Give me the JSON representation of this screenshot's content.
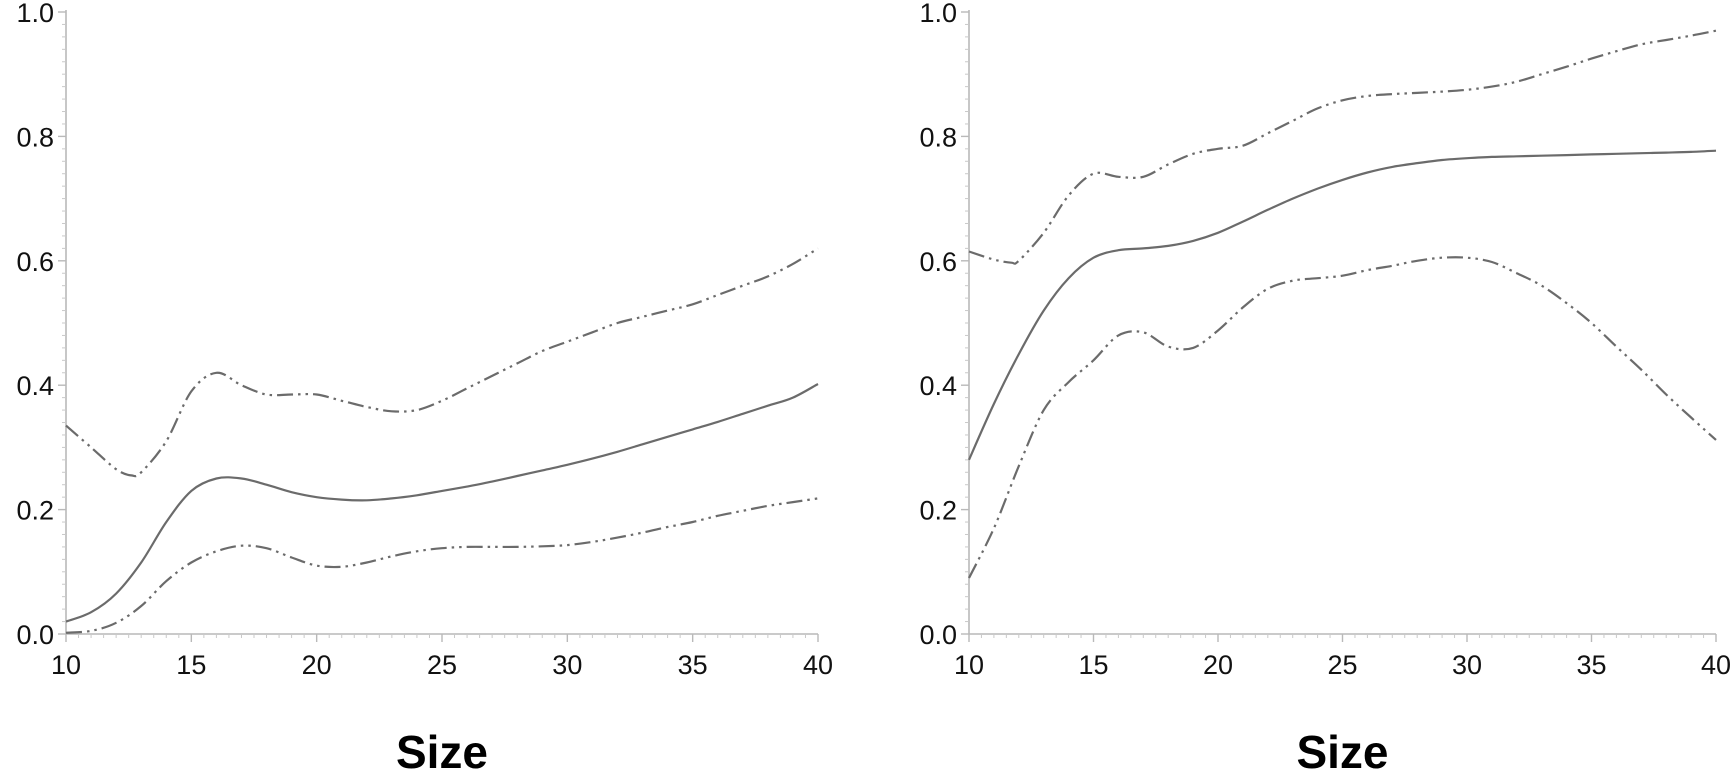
{
  "chart_data": [
    {
      "type": "line",
      "xlabel": "Size",
      "ylabel": "",
      "xlim": [
        10,
        40
      ],
      "ylim": [
        0,
        1
      ],
      "x_ticks": [
        "10",
        "15",
        "20",
        "25",
        "30",
        "35",
        "40"
      ],
      "y_ticks": [
        "0.0",
        "0.2",
        "0.4",
        "0.6",
        "0.8",
        "1.0"
      ],
      "grid": false,
      "series": [
        {
          "style": "solid",
          "x": [
            10,
            11,
            12,
            13,
            14,
            15,
            16,
            17,
            18,
            19,
            20,
            21,
            22,
            23,
            24,
            25,
            26,
            27,
            28,
            29,
            30,
            31,
            32,
            33,
            34,
            35,
            36,
            37,
            38,
            39,
            40
          ],
          "values": [
            0.02,
            0.035,
            0.065,
            0.115,
            0.18,
            0.23,
            0.25,
            0.25,
            0.24,
            0.228,
            0.22,
            0.216,
            0.215,
            0.218,
            0.223,
            0.23,
            0.237,
            0.245,
            0.254,
            0.263,
            0.272,
            0.282,
            0.293,
            0.305,
            0.317,
            0.329,
            0.341,
            0.354,
            0.367,
            0.38,
            0.402
          ]
        },
        {
          "style": "dash-dot-dot",
          "x": [
            10,
            11,
            12,
            12.6,
            13,
            14,
            15,
            16,
            17,
            18,
            19,
            20,
            21,
            22,
            23,
            24,
            25,
            26,
            27,
            28,
            29,
            30,
            31,
            32,
            33,
            34,
            35,
            36,
            37,
            38,
            39,
            40
          ],
          "values": [
            0.335,
            0.3,
            0.265,
            0.255,
            0.26,
            0.31,
            0.39,
            0.42,
            0.4,
            0.385,
            0.385,
            0.385,
            0.375,
            0.365,
            0.358,
            0.36,
            0.375,
            0.395,
            0.415,
            0.435,
            0.455,
            0.47,
            0.485,
            0.5,
            0.51,
            0.52,
            0.53,
            0.545,
            0.56,
            0.575,
            0.595,
            0.62
          ]
        },
        {
          "style": "dash-dot-dot",
          "x": [
            10,
            11,
            12,
            13,
            14,
            15,
            16,
            17,
            18,
            19,
            20,
            21,
            22,
            23,
            24,
            25,
            26,
            27,
            28,
            29,
            30,
            31,
            32,
            33,
            34,
            35,
            36,
            37,
            38,
            39,
            40
          ],
          "values": [
            0.002,
            0.005,
            0.018,
            0.045,
            0.085,
            0.115,
            0.133,
            0.142,
            0.138,
            0.123,
            0.11,
            0.108,
            0.115,
            0.125,
            0.133,
            0.138,
            0.14,
            0.14,
            0.14,
            0.141,
            0.143,
            0.148,
            0.155,
            0.163,
            0.172,
            0.18,
            0.19,
            0.198,
            0.206,
            0.212,
            0.218
          ]
        }
      ]
    },
    {
      "type": "line",
      "xlabel": "Size",
      "ylabel": "",
      "xlim": [
        10,
        40
      ],
      "ylim": [
        0,
        1
      ],
      "x_ticks": [
        "10",
        "15",
        "20",
        "25",
        "30",
        "35",
        "40"
      ],
      "y_ticks": [
        "0.0",
        "0.2",
        "0.4",
        "0.6",
        "0.8",
        "1.0"
      ],
      "grid": false,
      "series": [
        {
          "style": "solid",
          "x": [
            10,
            11,
            12,
            13,
            14,
            15,
            16,
            17,
            18,
            19,
            20,
            21,
            22,
            23,
            24,
            25,
            26,
            27,
            28,
            29,
            30,
            31,
            32,
            33,
            34,
            35,
            36,
            37,
            38,
            39,
            40
          ],
          "values": [
            0.28,
            0.37,
            0.45,
            0.52,
            0.572,
            0.605,
            0.617,
            0.62,
            0.624,
            0.632,
            0.645,
            0.663,
            0.682,
            0.7,
            0.716,
            0.73,
            0.742,
            0.751,
            0.757,
            0.762,
            0.765,
            0.767,
            0.768,
            0.769,
            0.77,
            0.771,
            0.772,
            0.773,
            0.774,
            0.775,
            0.777
          ]
        },
        {
          "style": "dash-dot-dot",
          "x": [
            10,
            11,
            11.7,
            12,
            13,
            14,
            15,
            16,
            17,
            18,
            19,
            20,
            21,
            22,
            23,
            24,
            25,
            26,
            27,
            28,
            29,
            30,
            31,
            32,
            33,
            34,
            35,
            36,
            37,
            38,
            39,
            40
          ],
          "values": [
            0.615,
            0.602,
            0.597,
            0.6,
            0.645,
            0.705,
            0.74,
            0.735,
            0.735,
            0.755,
            0.772,
            0.78,
            0.785,
            0.805,
            0.825,
            0.845,
            0.858,
            0.865,
            0.868,
            0.87,
            0.872,
            0.875,
            0.88,
            0.888,
            0.9,
            0.912,
            0.925,
            0.937,
            0.948,
            0.955,
            0.962,
            0.97
          ]
        },
        {
          "style": "dash-dot-dot",
          "x": [
            10,
            11,
            12,
            13,
            14,
            15,
            16,
            17,
            18,
            19,
            20,
            21,
            22,
            23,
            24,
            25,
            26,
            27,
            28,
            29,
            30,
            31,
            32,
            33,
            34,
            35,
            36,
            37,
            38,
            39,
            40
          ],
          "values": [
            0.09,
            0.17,
            0.27,
            0.36,
            0.405,
            0.44,
            0.48,
            0.485,
            0.462,
            0.46,
            0.488,
            0.525,
            0.555,
            0.568,
            0.572,
            0.576,
            0.585,
            0.592,
            0.6,
            0.605,
            0.605,
            0.598,
            0.58,
            0.56,
            0.532,
            0.5,
            0.462,
            0.425,
            0.385,
            0.348,
            0.312
          ]
        }
      ]
    }
  ]
}
